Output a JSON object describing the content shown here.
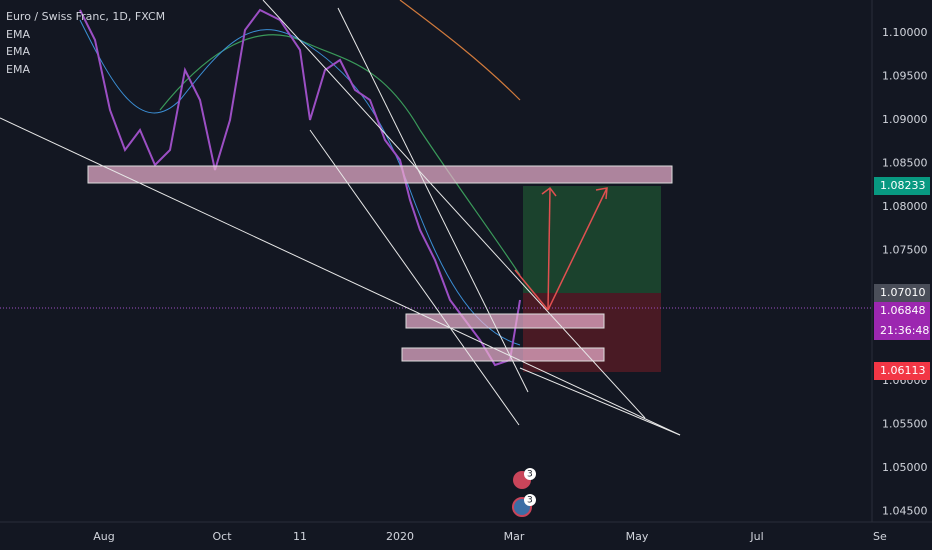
{
  "header": {
    "symbol": "Euro / Swiss Franc, 1D, FXCM",
    "indicators": [
      "EMA",
      "EMA",
      "EMA"
    ]
  },
  "price_axis": [
    "1.10000",
    "1.09500",
    "1.09000",
    "1.08500",
    "1.08000",
    "1.07500",
    "1.06000",
    "1.05500",
    "1.05000",
    "1.04500"
  ],
  "price_tags": {
    "target": "1.08233",
    "entry": "1.07010",
    "last": "1.06848",
    "countdown": "21:36:48",
    "stop": "1.06113"
  },
  "time_axis": [
    "Aug",
    "Oct",
    "11",
    "2020",
    "Mar",
    "May",
    "Jul",
    "Se"
  ],
  "events": [
    "3",
    "3"
  ]
}
